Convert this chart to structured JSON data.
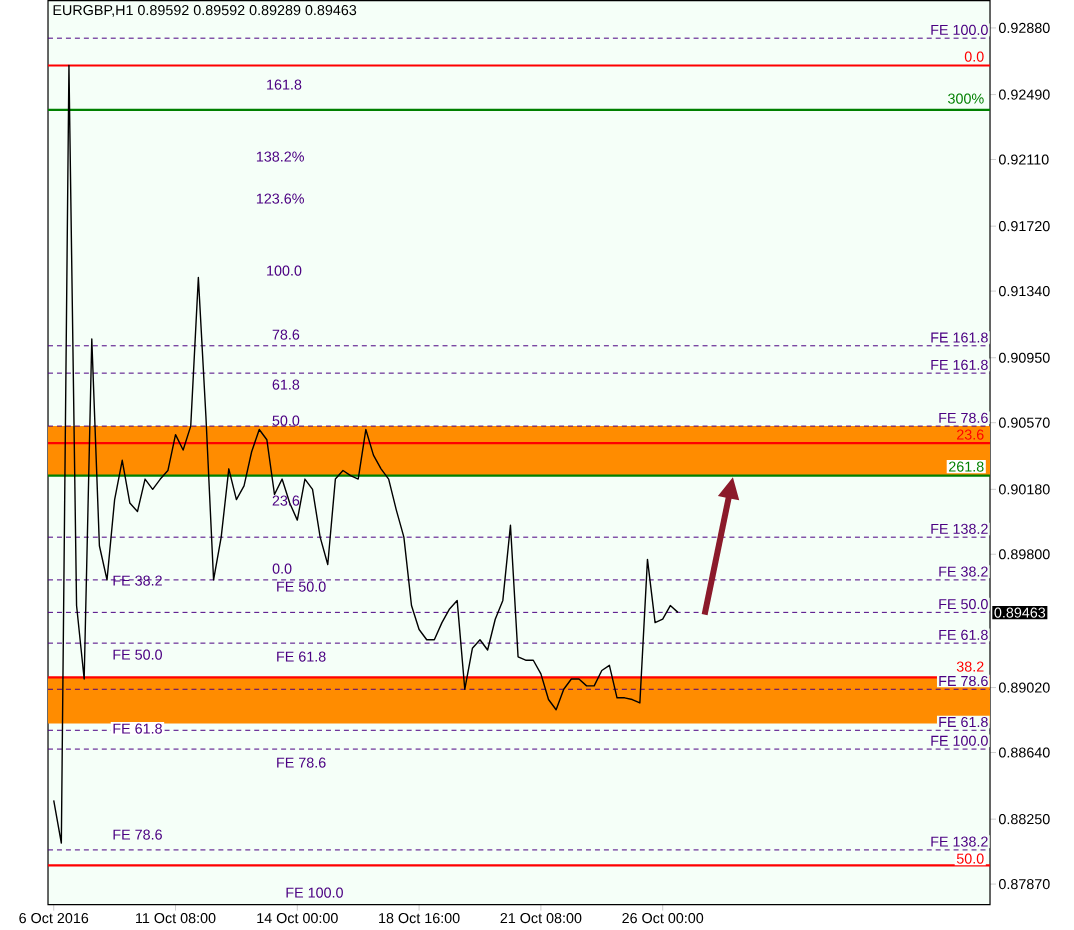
{
  "chart_data": {
    "type": "line",
    "title": "EURGBP,H1  0.89592 0.89592 0.89289 0.89463",
    "categories": [
      "6 Oct 2016",
      null,
      null,
      null,
      null,
      null,
      null,
      null,
      null,
      null,
      null,
      null,
      null,
      null,
      null,
      null,
      "11 Oct 08:00",
      null,
      null,
      null,
      null,
      null,
      null,
      null,
      null,
      null,
      null,
      null,
      null,
      null,
      null,
      null,
      "14 Oct 00:00",
      null,
      null,
      null,
      null,
      null,
      null,
      null,
      null,
      null,
      null,
      null,
      null,
      null,
      null,
      null,
      "18 Oct 16:00",
      null,
      null,
      null,
      null,
      null,
      null,
      null,
      null,
      null,
      null,
      null,
      null,
      null,
      null,
      null,
      "21 Oct 08:00",
      null,
      null,
      null,
      null,
      null,
      null,
      null,
      null,
      null,
      null,
      null,
      null,
      null,
      null,
      null,
      "26 Oct 00:00",
      null,
      null
    ],
    "series": [
      {
        "color": "#000000",
        "values": [
          0.8836,
          0.8811,
          0.9266,
          0.895,
          0.8907,
          0.9106,
          0.8985,
          0.8965,
          0.9012,
          0.9035,
          0.901,
          0.9005,
          0.9024,
          0.9018,
          0.9024,
          0.9029,
          0.905,
          0.9041,
          0.9055,
          0.9142,
          0.906,
          0.8965,
          0.899,
          0.903,
          0.9012,
          0.902,
          0.904,
          0.9053,
          0.9047,
          0.9015,
          0.9024,
          0.901,
          0.9,
          0.9024,
          0.9018,
          0.899,
          0.8974,
          0.9024,
          0.9029,
          0.9026,
          0.9024,
          0.9053,
          0.9038,
          0.903,
          0.9024,
          0.9006,
          0.899,
          0.895,
          0.8936,
          0.893,
          0.893,
          0.894,
          0.8948,
          0.8953,
          0.8901,
          0.8925,
          0.893,
          0.8924,
          0.8942,
          0.8953,
          0.8997,
          0.892,
          0.8918,
          0.8918,
          0.891,
          0.8895,
          0.8889,
          0.8901,
          0.8907,
          0.8907,
          0.8903,
          0.8903,
          0.8912,
          0.8915,
          0.8896,
          0.8896,
          0.8895,
          0.8893,
          0.8977,
          0.894,
          0.8942,
          0.895,
          0.8946
        ]
      }
    ],
    "ylim": [
      0.8775,
      0.9304
    ],
    "yticks": [
      {
        "value": 0.9288,
        "label": "0.92880"
      },
      {
        "value": 0.9249,
        "label": "0.92490"
      },
      {
        "value": 0.9211,
        "label": "0.92110"
      },
      {
        "value": 0.9172,
        "label": "0.91720"
      },
      {
        "value": 0.9134,
        "label": "0.91340"
      },
      {
        "value": 0.9095,
        "label": "0.90950"
      },
      {
        "value": 0.9057,
        "label": "0.90570"
      },
      {
        "value": 0.9018,
        "label": "0.90180"
      },
      {
        "value": 0.898,
        "label": "0.89800"
      },
      {
        "value": 0.8902,
        "label": "0.89020"
      },
      {
        "value": 0.8864,
        "label": "0.88640"
      },
      {
        "value": 0.8825,
        "label": "0.88250"
      },
      {
        "value": 0.8787,
        "label": "0.87870"
      }
    ],
    "bands": [
      {
        "axis": "y",
        "from": 0.9026,
        "to": 0.9055,
        "color": "#ff8c00"
      },
      {
        "axis": "y",
        "from": 0.8881,
        "to": 0.8908,
        "color": "#ff8c00"
      }
    ],
    "ref_lines": [
      {
        "axis": "y",
        "value": 0.9282,
        "label": "FE 100.0",
        "color": "#4b0082",
        "line_style": "dashed"
      },
      {
        "axis": "y",
        "value": 0.9266,
        "color": "#ff0000",
        "line_style": "solid"
      },
      {
        "axis": "y",
        "value": 0.924,
        "color": "#008000",
        "line_style": "solid"
      },
      {
        "axis": "y",
        "value": 0.9102,
        "label": "FE 161.8",
        "color": "#4b0082",
        "line_style": "dashed"
      },
      {
        "axis": "y",
        "value": 0.9086,
        "label": "FE 161.8",
        "color": "#4b0082",
        "line_style": "dashed"
      },
      {
        "axis": "y",
        "value": 0.9055,
        "label": "FE 78.6",
        "color": "#4b0082",
        "line_style": "dashed"
      },
      {
        "axis": "y",
        "value": 0.9045,
        "color": "#ff0000",
        "line_style": "solid"
      },
      {
        "axis": "y",
        "value": 0.9026,
        "color": "#008000",
        "line_style": "solid"
      },
      {
        "axis": "y",
        "value": 0.899,
        "label": "FE 138.2",
        "color": "#4b0082",
        "line_style": "dashed"
      },
      {
        "axis": "y",
        "value": 0.8965,
        "label": "FE 38.2",
        "color": "#4b0082",
        "line_style": "dashed"
      },
      {
        "axis": "y",
        "value": 0.8946,
        "label": "FE 50.0",
        "color": "#4b0082",
        "line_style": "dashed"
      },
      {
        "axis": "y",
        "value": 0.8928,
        "label": "FE 61.8",
        "color": "#4b0082",
        "line_style": "dashed"
      },
      {
        "axis": "y",
        "value": 0.8908,
        "color": "#ff0000",
        "line_style": "solid"
      },
      {
        "axis": "y",
        "value": 0.8901,
        "label": "FE 78.6",
        "color": "#4b0082",
        "line_style": "dashed"
      },
      {
        "axis": "y",
        "value": 0.8877,
        "label": "FE 61.8",
        "color": "#4b0082",
        "line_style": "dashed"
      },
      {
        "axis": "y",
        "value": 0.8866,
        "label": "FE 100.0",
        "color": "#4b0082",
        "line_style": "dashed"
      },
      {
        "axis": "y",
        "value": 0.8807,
        "label": "FE 138.2",
        "color": "#4b0082",
        "line_style": "dashed"
      },
      {
        "axis": "y",
        "value": 0.8798,
        "color": "#ff0000",
        "line_style": "solid"
      }
    ],
    "annotations": [
      "0.0",
      "300%",
      "23.6",
      "261.8",
      "38.2",
      "50.0",
      "161.8",
      "138.2%",
      "123.6%",
      "100.0",
      "78.6",
      "61.8",
      "50.0",
      "23.6",
      "0.0",
      "FE 38.2",
      "FE 50.0",
      "FE 50.0",
      "FE 61.8",
      "FE 61.8",
      "FE 78.6",
      "FE 78.6",
      "FE 100.0",
      "0.89463"
    ]
  }
}
